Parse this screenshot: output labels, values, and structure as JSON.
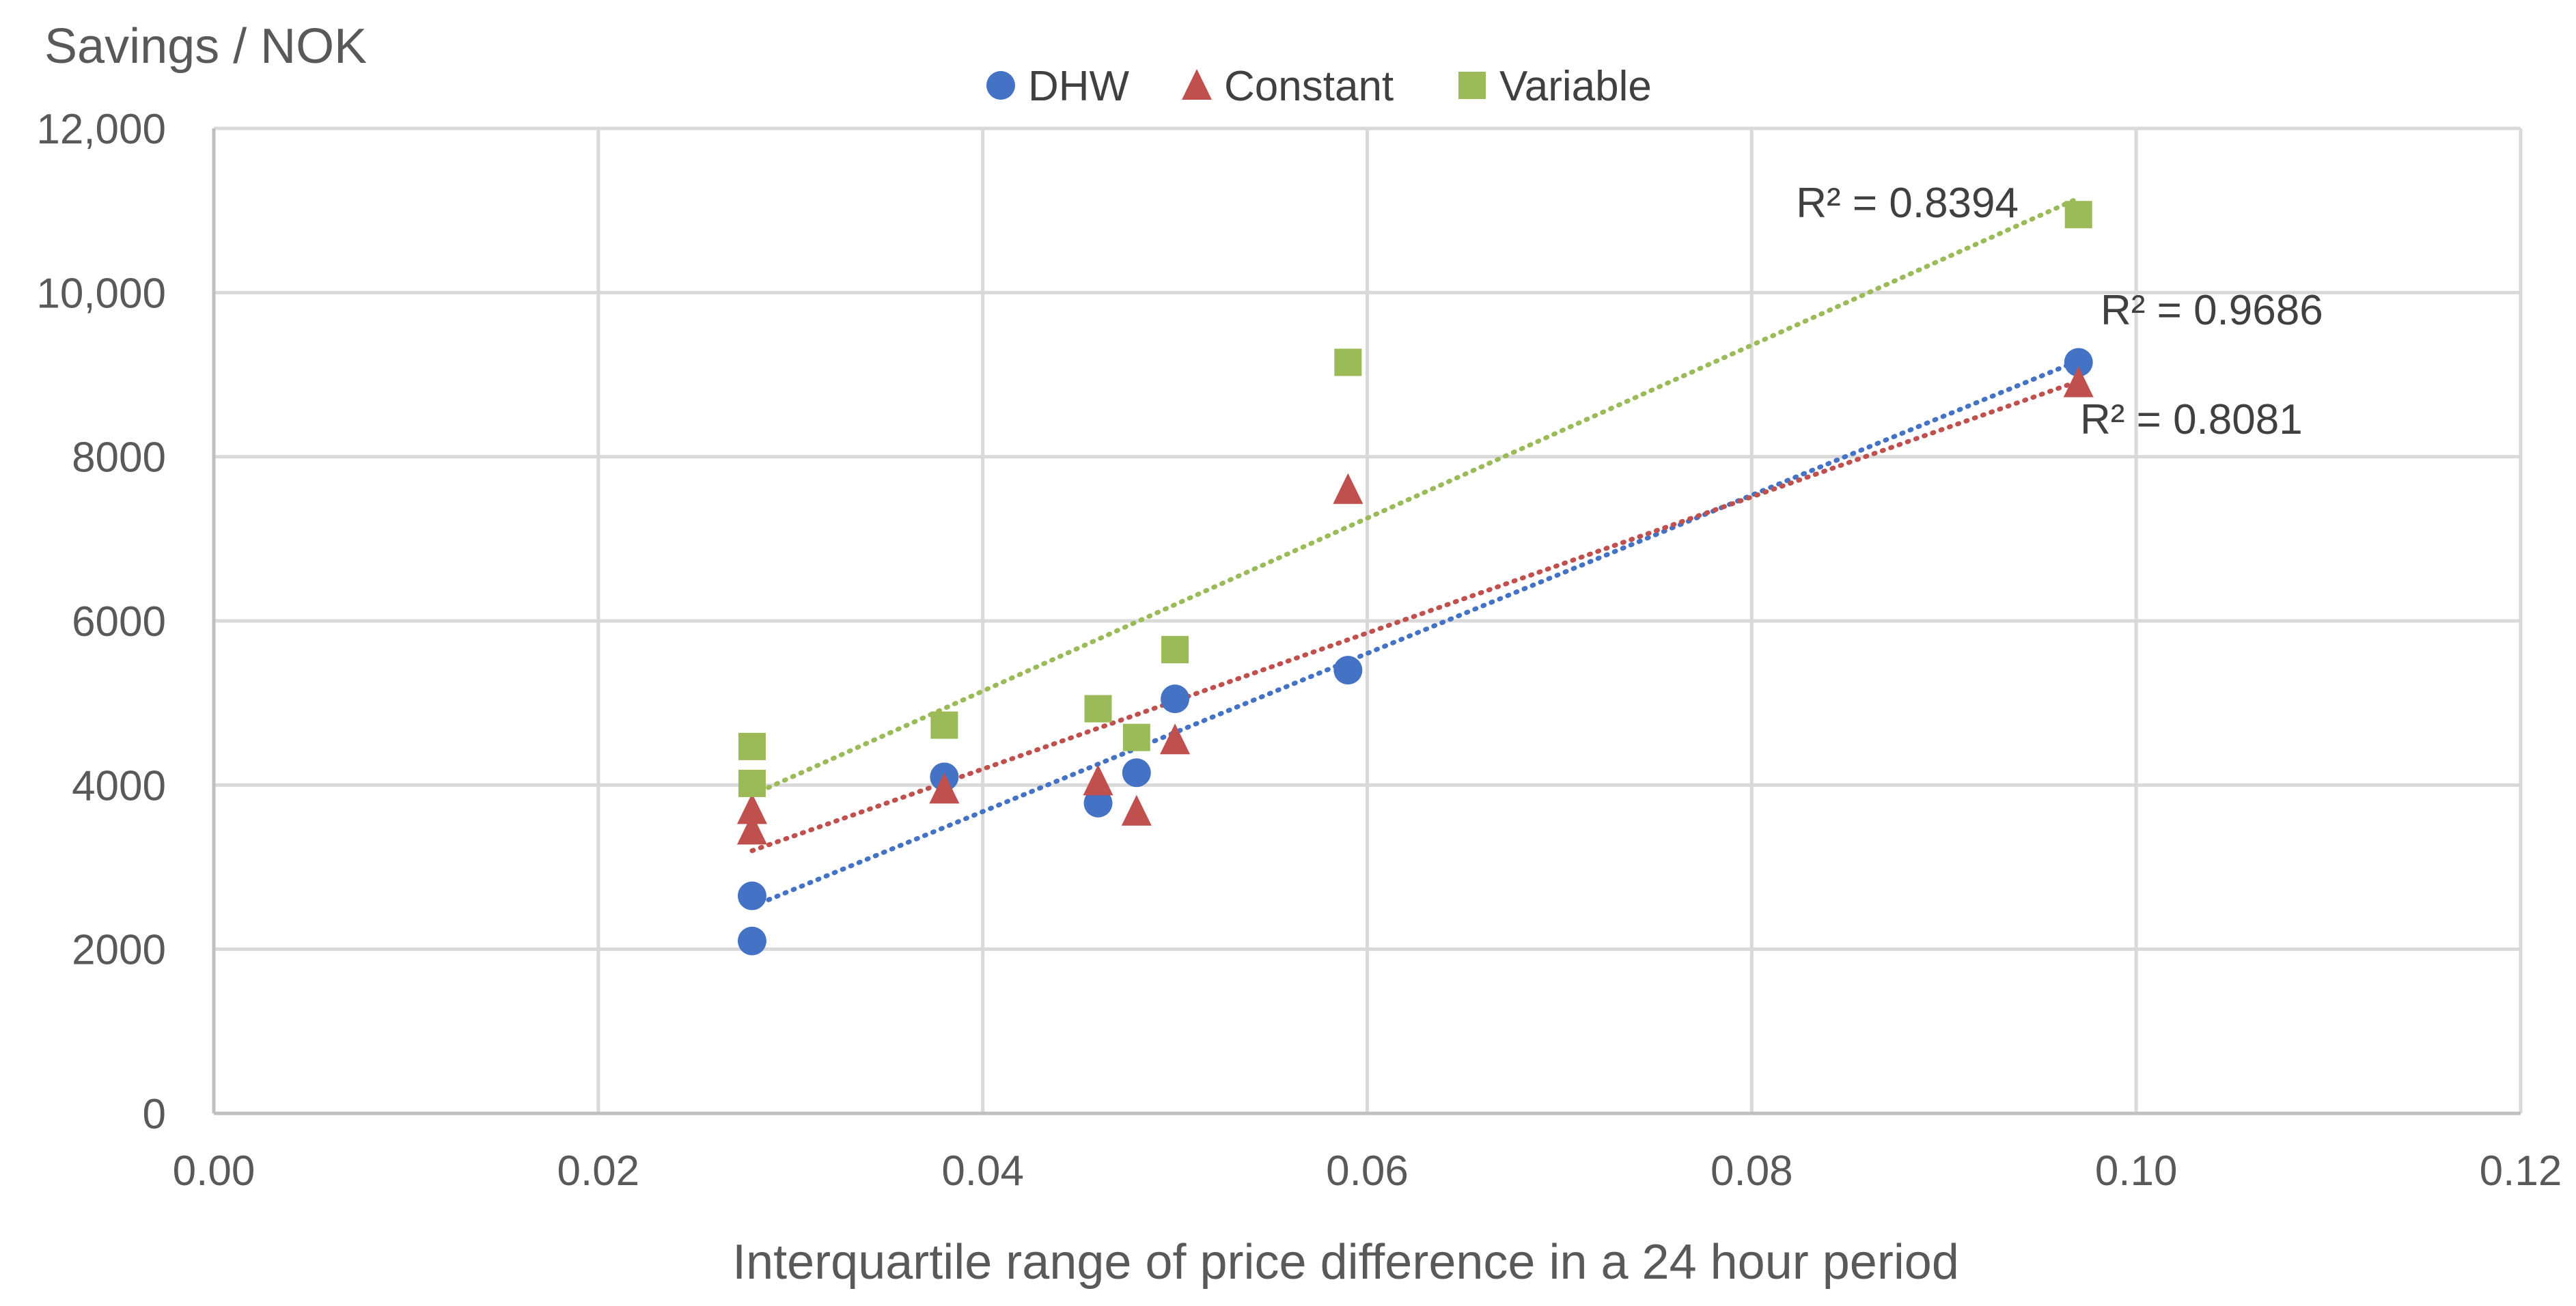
{
  "chart_data": {
    "type": "scatter",
    "title": "",
    "xlabel": "Interquartile range of price difference in a 24 hour period",
    "ylabel": "Savings / NOK",
    "xlim": [
      0,
      0.12
    ],
    "ylim": [
      0,
      12000
    ],
    "x_ticks": [
      0.0,
      0.02,
      0.04,
      0.06,
      0.08,
      0.1,
      0.12
    ],
    "x_tick_labels": [
      "0.00",
      "0.02",
      "0.04",
      "0.06",
      "0.08",
      "0.10",
      "0.12"
    ],
    "y_ticks": [
      0,
      2000,
      4000,
      6000,
      8000,
      10000,
      12000
    ],
    "y_tick_labels": [
      "0",
      "2000",
      "4000",
      "6000",
      "8000",
      "10,000",
      "12,000"
    ],
    "grid": true,
    "legend_position": "top-center",
    "series": [
      {
        "name": "DHW",
        "marker": "circle",
        "color": "#4472c4",
        "x": [
          0.028,
          0.028,
          0.038,
          0.046,
          0.048,
          0.05,
          0.059,
          0.097
        ],
        "y": [
          2100,
          2650,
          4100,
          3780,
          4150,
          5050,
          5400,
          9150
        ],
        "trendline": {
          "x": [
            0.028,
            0.097
          ],
          "y": [
            2520,
            9170
          ]
        },
        "r2_label": "R² = 0.9686"
      },
      {
        "name": "Constant",
        "marker": "triangle",
        "color": "#c0504d",
        "x": [
          0.028,
          0.028,
          0.038,
          0.046,
          0.048,
          0.05,
          0.059,
          0.097
        ],
        "y": [
          3450,
          3700,
          3950,
          4050,
          3680,
          4550,
          7600,
          8900
        ],
        "trendline": {
          "x": [
            0.028,
            0.097
          ],
          "y": [
            3200,
            8920
          ]
        },
        "r2_label": "R² = 0.8081"
      },
      {
        "name": "Variable",
        "marker": "square",
        "color": "#9bbb59",
        "x": [
          0.028,
          0.028,
          0.038,
          0.046,
          0.048,
          0.05,
          0.059,
          0.097
        ],
        "y": [
          4020,
          4470,
          4730,
          4930,
          4580,
          5650,
          9150,
          10950
        ],
        "trendline": {
          "x": [
            0.028,
            0.097
          ],
          "y": [
            3880,
            11150
          ]
        },
        "r2_label": "R² = 0.8394"
      }
    ]
  }
}
